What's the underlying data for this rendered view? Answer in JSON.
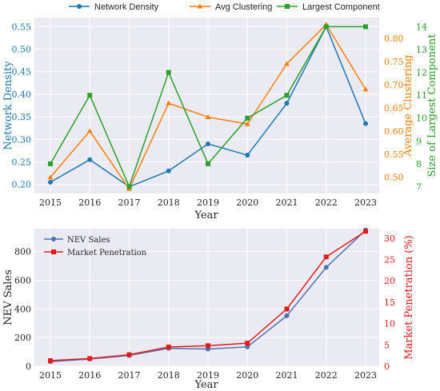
{
  "colors": {
    "density": "#1f77b4",
    "clustering": "#ff7f0e",
    "component": "#2ca02c",
    "nev": "#4c72b0",
    "penetration": "#e31a1c",
    "panel_bg": "#eaeaf2",
    "grid": "#ffffff"
  },
  "chart_data": [
    {
      "type": "line",
      "x": [
        2015,
        2016,
        2017,
        2018,
        2019,
        2020,
        2021,
        2022,
        2023
      ],
      "xlabel": "Year",
      "series": [
        {
          "name": "Network Density",
          "axis": "left",
          "ylabel": "Network Density",
          "values": [
            0.205,
            0.255,
            0.195,
            0.23,
            0.29,
            0.265,
            0.38,
            0.55,
            0.335
          ],
          "ylim": [
            0.18,
            0.57
          ],
          "ticks": [
            "0.20",
            "0.25",
            "0.30",
            "0.35",
            "0.40",
            "0.45",
            "0.50",
            "0.55"
          ],
          "marker": "circle"
        },
        {
          "name": "Avg Clustering",
          "axis": "right1",
          "ylabel": "Average Clustering",
          "values": [
            0.5,
            0.6,
            0.475,
            0.66,
            0.63,
            0.615,
            0.745,
            0.83,
            0.69
          ],
          "ylim": [
            0.465,
            0.845
          ],
          "ticks": [
            "0.50",
            "0.55",
            "0.60",
            "0.65",
            "0.70",
            "0.75",
            "0.80"
          ],
          "marker": "triangle"
        },
        {
          "name": "Largest Component",
          "axis": "right2",
          "ylabel": "Size of Largest Component",
          "values": [
            8,
            11,
            7,
            12,
            8,
            10,
            11,
            14,
            14
          ],
          "ylim": [
            6.7,
            14.4
          ],
          "ticks": [
            "7",
            "8",
            "9",
            "10",
            "11",
            "12",
            "13",
            "14"
          ],
          "marker": "square"
        }
      ],
      "legend_position": "top-center",
      "grid": true
    },
    {
      "type": "line",
      "x": [
        2015,
        2016,
        2017,
        2018,
        2019,
        2020,
        2021,
        2022,
        2023
      ],
      "xlabel": "Year",
      "series": [
        {
          "name": "NEV Sales",
          "axis": "left",
          "ylabel": "NEV Sales",
          "values": [
            32,
            50,
            75,
            125,
            120,
            135,
            352,
            690,
            950
          ],
          "ylim": [
            0,
            960
          ],
          "ticks": [
            "0",
            "200",
            "400",
            "600",
            "800"
          ],
          "marker": "circle"
        },
        {
          "name": "Market Penetration",
          "axis": "right",
          "ylabel": "Market Penetration (%)",
          "values": [
            1.3,
            1.8,
            2.7,
            4.5,
            4.8,
            5.4,
            13.4,
            25.6,
            31.6
          ],
          "ylim": [
            0,
            32.2
          ],
          "ticks": [
            "0",
            "5",
            "10",
            "15",
            "20",
            "25",
            "30"
          ],
          "marker": "square"
        }
      ],
      "legend_position": "top-left",
      "grid": true
    }
  ]
}
